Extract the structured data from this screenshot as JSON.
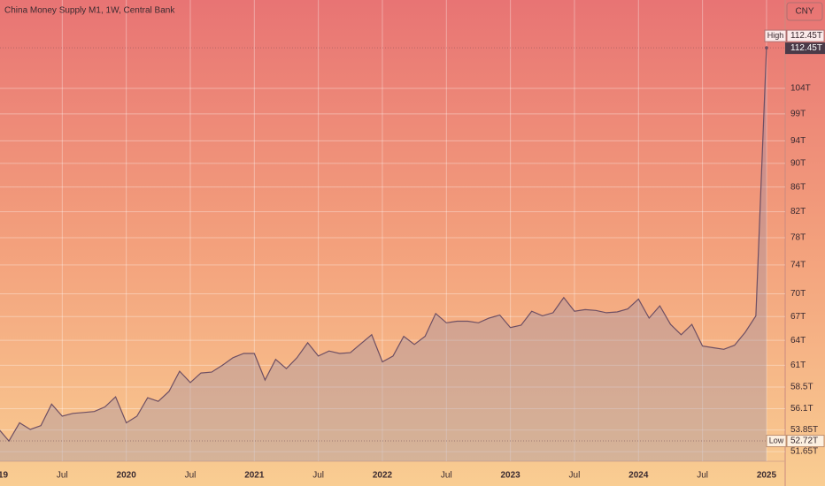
{
  "chart_data": {
    "type": "area",
    "title": "China Money Supply M1, 1W, Central Bank",
    "currency": "CNY",
    "log_scale": true,
    "grid": true,
    "color": "#6e4f63",
    "x": [
      "2019-01",
      "2019-02",
      "2019-03",
      "2019-04",
      "2019-05",
      "2019-06",
      "2019-07",
      "2019-08",
      "2019-09",
      "2019-10",
      "2019-11",
      "2019-12",
      "2020-01",
      "2020-02",
      "2020-03",
      "2020-04",
      "2020-05",
      "2020-06",
      "2020-07",
      "2020-08",
      "2020-09",
      "2020-10",
      "2020-11",
      "2020-12",
      "2021-01",
      "2021-02",
      "2021-03",
      "2021-04",
      "2021-05",
      "2021-06",
      "2021-07",
      "2021-08",
      "2021-09",
      "2021-10",
      "2021-11",
      "2021-12",
      "2022-01",
      "2022-02",
      "2022-03",
      "2022-04",
      "2022-05",
      "2022-06",
      "2022-07",
      "2022-08",
      "2022-09",
      "2022-10",
      "2022-11",
      "2022-12",
      "2023-01",
      "2023-02",
      "2023-03",
      "2023-04",
      "2023-05",
      "2023-06",
      "2023-07",
      "2023-08",
      "2023-09",
      "2023-10",
      "2023-11",
      "2023-12",
      "2024-01",
      "2024-02",
      "2024-03",
      "2024-04",
      "2024-05",
      "2024-06",
      "2024-07",
      "2024-08",
      "2024-09",
      "2024-10",
      "2024-11",
      "2024-12",
      "2025-01"
    ],
    "values": [
      54.0,
      52.72,
      54.6,
      53.9,
      54.3,
      56.6,
      55.3,
      55.6,
      55.7,
      55.8,
      56.3,
      57.4,
      54.6,
      55.3,
      57.3,
      56.9,
      58.0,
      60.3,
      59.0,
      60.1,
      60.2,
      61.0,
      61.9,
      62.4,
      62.4,
      59.3,
      61.7,
      60.6,
      61.9,
      63.7,
      62.1,
      62.7,
      62.4,
      62.5,
      63.6,
      64.7,
      61.4,
      62.1,
      64.5,
      63.5,
      64.5,
      67.4,
      66.2,
      66.4,
      66.4,
      66.2,
      66.8,
      67.2,
      65.6,
      65.9,
      67.7,
      67.1,
      67.5,
      69.5,
      67.7,
      67.9,
      67.8,
      67.5,
      67.6,
      68.0,
      69.3,
      66.8,
      68.4,
      66.0,
      64.7,
      66.0,
      63.3,
      63.1,
      62.9,
      63.4,
      65.0,
      67.1,
      112.45
    ],
    "xlim": [
      "2019-01",
      "2025-02"
    ],
    "xticks": [
      {
        "value": "2019-01",
        "label": "2019"
      },
      {
        "value": "2019-07",
        "label": "Jul"
      },
      {
        "value": "2020-01",
        "label": "2020"
      },
      {
        "value": "2020-07",
        "label": "Jul"
      },
      {
        "value": "2021-01",
        "label": "2021"
      },
      {
        "value": "2021-07",
        "label": "Jul"
      },
      {
        "value": "2022-01",
        "label": "2022"
      },
      {
        "value": "2022-07",
        "label": "Jul"
      },
      {
        "value": "2023-01",
        "label": "2023"
      },
      {
        "value": "2023-07",
        "label": "Jul"
      },
      {
        "value": "2024-01",
        "label": "2024"
      },
      {
        "value": "2024-07",
        "label": "Jul"
      },
      {
        "value": "2025-01",
        "label": "2025"
      }
    ],
    "ylim": [
      50.7,
      123.3
    ],
    "yticks": [
      {
        "value": 104,
        "label": "104T"
      },
      {
        "value": 99,
        "label": "99T"
      },
      {
        "value": 94,
        "label": "94T"
      },
      {
        "value": 90,
        "label": "90T"
      },
      {
        "value": 86,
        "label": "86T"
      },
      {
        "value": 82,
        "label": "82T"
      },
      {
        "value": 78,
        "label": "78T"
      },
      {
        "value": 74,
        "label": "74T"
      },
      {
        "value": 70,
        "label": "70T"
      },
      {
        "value": 67,
        "label": "67T"
      },
      {
        "value": 64,
        "label": "64T"
      },
      {
        "value": 61,
        "label": "61T"
      },
      {
        "value": 58.5,
        "label": "58.5T"
      },
      {
        "value": 56.1,
        "label": "56.1T"
      },
      {
        "value": 53.85,
        "label": "53.85T"
      },
      {
        "value": 51.65,
        "label": "51.65T"
      }
    ],
    "high": {
      "label": "High",
      "value": 112.45,
      "value_label": "112.45T"
    },
    "low": {
      "label": "Low",
      "value": 52.72,
      "value_label": "52.72T"
    },
    "last_value_label": "112.45T"
  }
}
